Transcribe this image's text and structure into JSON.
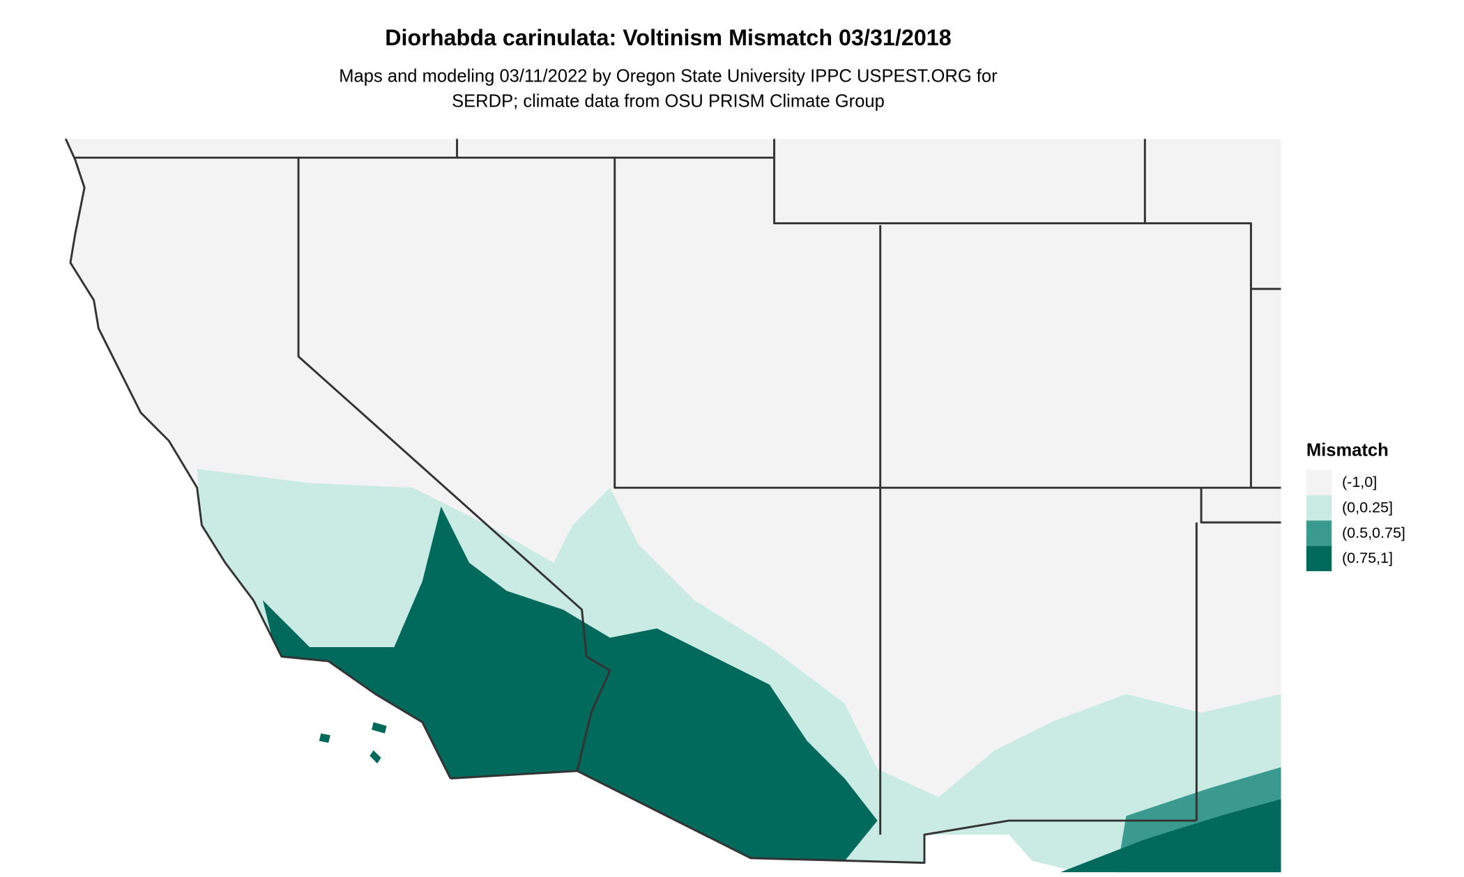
{
  "title": "Diorhabda carinulata: Voltinism Mismatch 03/31/2018",
  "subtitle": [
    "Maps and modeling 03/11/2022 by Oregon State University IPPC USPEST.ORG for",
    "SERDP; climate data from OSU PRISM Climate Group"
  ],
  "legend": {
    "title": "Mismatch",
    "items": [
      {
        "label": "(-1,0]",
        "color": "#f3f3f3"
      },
      {
        "label": "(0,0.25]",
        "color": "#c9ebe4"
      },
      {
        "label": "(0.5,0.75]",
        "color": "#3b9a90"
      },
      {
        "label": "(0.75,1]",
        "color": "#02695d"
      }
    ]
  }
}
